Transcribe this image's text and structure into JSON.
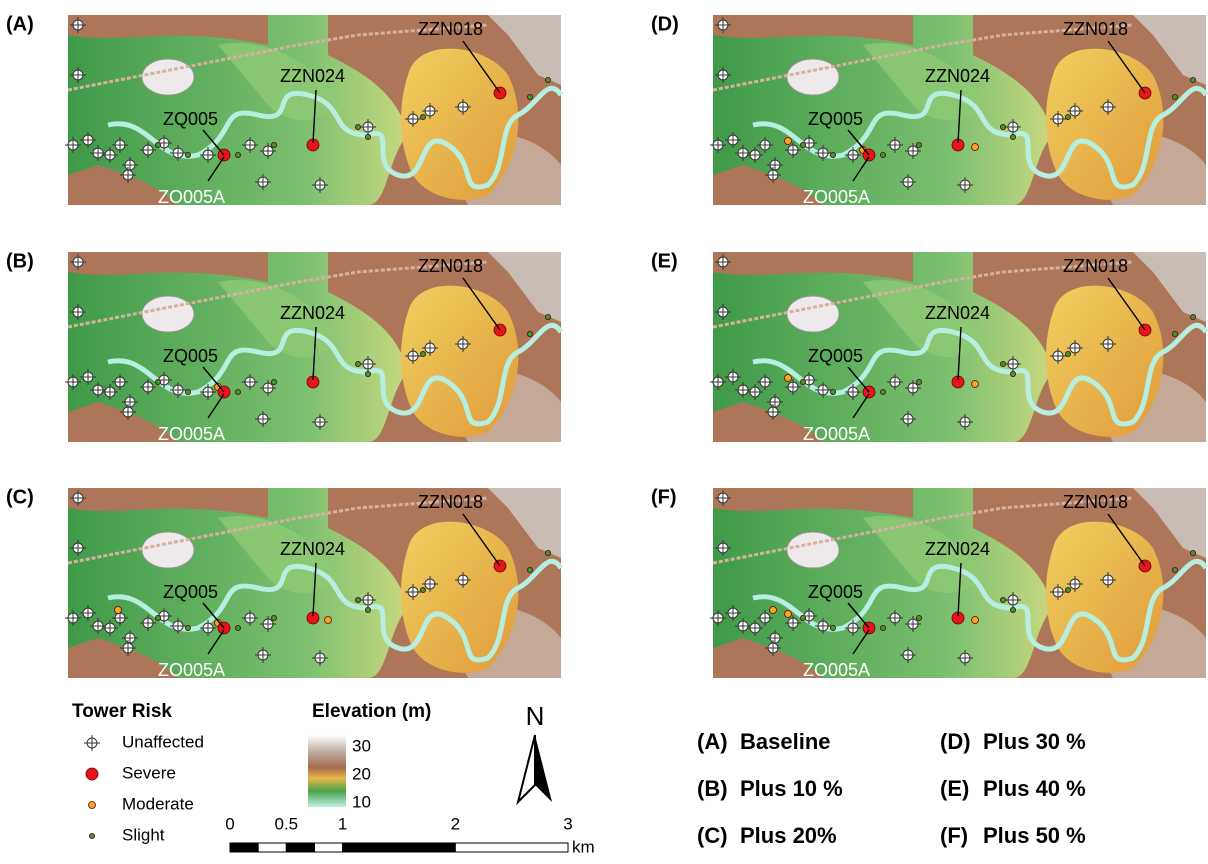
{
  "panels": [
    {
      "label": "(A)",
      "towers": [
        "ZZN018",
        "ZZN024",
        "ZQ005",
        "ZO005A"
      ]
    },
    {
      "label": "(B)",
      "towers": [
        "ZZN018",
        "ZZN024",
        "ZQ005",
        "ZO005A"
      ]
    },
    {
      "label": "(C)",
      "towers": [
        "ZZN018",
        "ZZN024",
        "ZQ005",
        "ZO005A"
      ]
    },
    {
      "label": "(D)",
      "towers": [
        "ZZN018",
        "ZZN024",
        "ZQ005",
        "ZO005A"
      ]
    },
    {
      "label": "(E)",
      "towers": [
        "ZZN018",
        "ZZN024",
        "ZQ005",
        "ZO005A"
      ]
    },
    {
      "label": "(F)",
      "towers": [
        "ZZN018",
        "ZZN024",
        "ZQ005",
        "ZO005A"
      ]
    }
  ],
  "legend": {
    "title": "Tower Risk",
    "items": [
      {
        "name": "Unaffected",
        "color": "#ffffff"
      },
      {
        "name": "Severe",
        "color": "#e8141c"
      },
      {
        "name": "Moderate",
        "color": "#f5a623"
      },
      {
        "name": "Slight",
        "color": "#2e9e3a"
      }
    ]
  },
  "elevation": {
    "title": "Elevation (m)",
    "ticks": [
      30,
      20,
      10
    ]
  },
  "scale": {
    "ticks": [
      0,
      0.5,
      1,
      2,
      3
    ],
    "unit": "km"
  },
  "north": "N",
  "captions": [
    {
      "label": "(A)",
      "text": "Baseline"
    },
    {
      "label": "(B)",
      "text": "Plus 10 %"
    },
    {
      "label": "(C)",
      "text": "Plus 20%"
    },
    {
      "label": "(D)",
      "text": "Plus 30 %"
    },
    {
      "label": "(E)",
      "text": "Plus 40 %"
    },
    {
      "label": "(F)",
      "text": "Plus 50 %"
    }
  ]
}
